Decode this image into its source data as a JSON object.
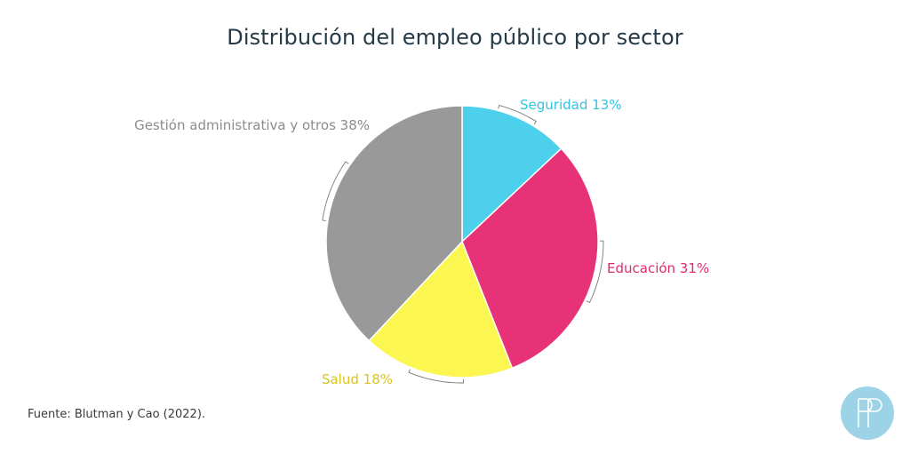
{
  "chart_data": {
    "type": "pie",
    "title": "Distribución del empleo público por sector",
    "slices": [
      {
        "label": "Seguridad 13%",
        "name": "Seguridad",
        "value": 13,
        "color": "#4dd0ec"
      },
      {
        "label": "Educación 31%",
        "name": "Educación",
        "value": 31,
        "color": "#e83278"
      },
      {
        "label": "Salud 18%",
        "name": "Salud",
        "value": 18,
        "color": "#fbf650"
      },
      {
        "label": "Gestión administrativa y otros 38%",
        "name": "Gestión administrativa y otros",
        "value": 38,
        "color": "#999999"
      }
    ],
    "label_colors": {
      "Seguridad": "#34c3e0",
      "Educación": "#e0286f",
      "Salud": "#d9c520",
      "Gestión administrativa y otros": "#8c8c8c"
    },
    "start_angle": "12 o'clock",
    "direction": "clockwise"
  },
  "source": "Fuente: Blutman y Cao (2022).",
  "logo": {
    "icon": "pp-monogram-logo",
    "color": "#9cd3e6"
  }
}
